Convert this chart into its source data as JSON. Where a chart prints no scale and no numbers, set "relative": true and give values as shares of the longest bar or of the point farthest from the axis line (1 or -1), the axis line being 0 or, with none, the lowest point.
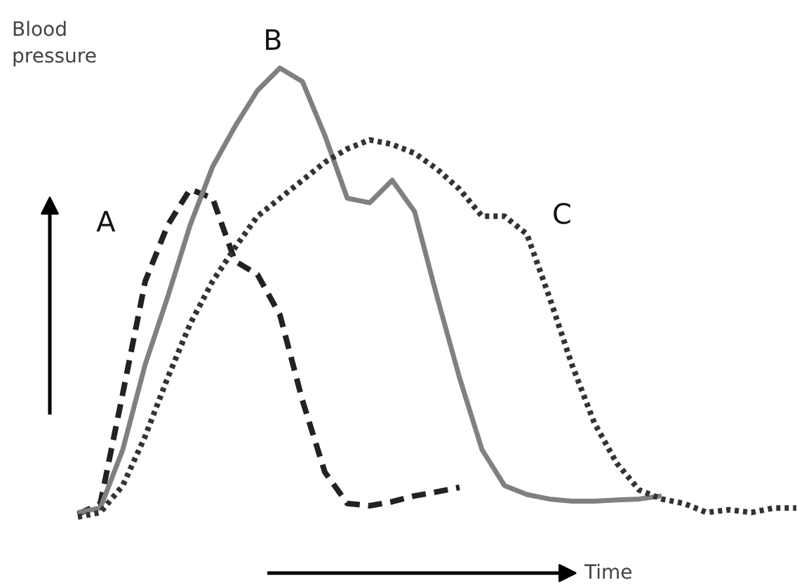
{
  "chart_data": {
    "type": "line",
    "relative": true,
    "xlabel": "Time",
    "ylabel": "Blood pressure",
    "grid": false,
    "legend": false,
    "tick_labels": false,
    "categories": [
      null,
      null,
      null,
      null,
      null,
      null,
      null,
      null,
      null,
      null,
      null,
      null,
      null,
      null,
      null,
      null,
      null,
      null,
      null,
      null,
      null,
      null,
      null,
      null,
      null,
      null,
      null,
      null,
      null,
      null,
      null,
      null,
      null
    ],
    "series": [
      {
        "name": "A",
        "color": "#222222",
        "line_style": "dashed",
        "values": [
          0.006,
          0.03,
          0.275,
          0.525,
          0.65,
          0.73,
          0.71,
          0.57,
          0.54,
          0.45,
          0.26,
          0.1,
          0.03,
          0.025,
          0.034,
          0.047,
          0.056,
          0.066,
          null,
          null,
          null,
          null,
          null,
          null,
          null,
          null,
          null,
          null,
          null,
          null,
          null,
          null,
          null
        ]
      },
      {
        "name": "B",
        "color": "#808080",
        "line_style": "solid",
        "values": [
          0.01,
          0.02,
          0.15,
          0.34,
          0.49,
          0.65,
          0.78,
          0.87,
          0.95,
          1.0,
          0.97,
          0.85,
          0.71,
          0.7,
          0.75,
          0.68,
          0.49,
          0.31,
          0.15,
          0.07,
          0.05,
          0.04,
          0.035,
          0.035,
          0.038,
          0.04,
          0.047,
          null,
          null,
          null,
          null,
          null,
          null
        ]
      },
      {
        "name": "C",
        "color": "#333333",
        "line_style": "dotted",
        "values": [
          0,
          0.01,
          0.07,
          0.18,
          0.31,
          0.43,
          0.525,
          0.6,
          0.67,
          0.71,
          0.75,
          0.79,
          0.82,
          0.84,
          0.83,
          0.81,
          0.775,
          0.73,
          0.67,
          0.67,
          0.63,
          0.49,
          0.34,
          0.21,
          0.12,
          0.06,
          0.04,
          0.03,
          0.01,
          0.016,
          0.01,
          0.02,
          0.02
        ]
      }
    ]
  }
}
